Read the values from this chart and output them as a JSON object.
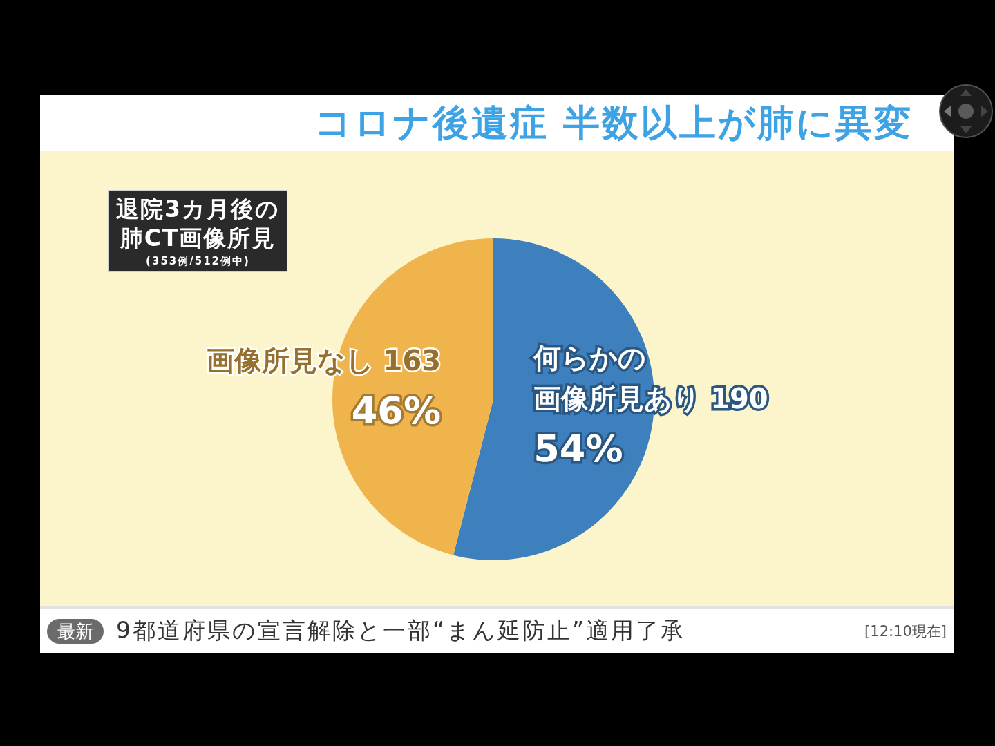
{
  "chart_data": {
    "type": "pie",
    "title": "コロナ後遺症 半数以上が肺に異変",
    "subtitle": "退院3カ月後の肺CT画像所見",
    "annotations": [
      "(353例/512例中)",
      "最新",
      "9都道府県の宣言解除と一部“まん延防止”適用了承",
      "[12:10現在]"
    ],
    "categories": [
      "何らかの画像所見あり 190",
      "画像所見なし 163"
    ],
    "values": [
      54,
      46
    ],
    "colors": [
      "#3d80bd",
      "#f0b44c"
    ],
    "value_labels": [
      "54%",
      "46%"
    ]
  }
}
